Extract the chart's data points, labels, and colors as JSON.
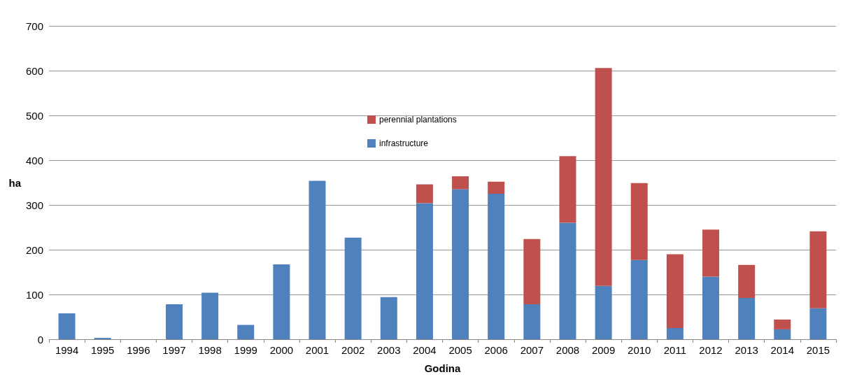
{
  "chart_data": {
    "type": "bar",
    "stacked": true,
    "xlabel": "Godina",
    "ylabel": "ha",
    "categories": [
      "1994",
      "1995",
      "1996",
      "1997",
      "1998",
      "1999",
      "2000",
      "2001",
      "2002",
      "2003",
      "2004",
      "2005",
      "2006",
      "2007",
      "2008",
      "2009",
      "2010",
      "2011",
      "2012",
      "2013",
      "2014",
      "2015"
    ],
    "series": [
      {
        "name": "infrastructure",
        "color": "#4f81bd",
        "values": [
          58,
          3,
          0,
          78,
          104,
          32,
          167,
          354,
          227,
          94,
          304,
          335,
          325,
          78,
          260,
          119,
          177,
          25,
          140,
          92,
          22,
          69
        ]
      },
      {
        "name": "perennial plantations",
        "color": "#c0504d",
        "values": [
          null,
          null,
          null,
          null,
          null,
          null,
          null,
          null,
          null,
          null,
          42,
          29,
          27,
          146,
          149,
          487,
          172,
          165,
          105,
          74,
          22,
          172
        ]
      }
    ],
    "ylim": [
      0,
      700
    ],
    "yticks": [
      0,
      100,
      200,
      300,
      400,
      500,
      600,
      700
    ],
    "grid": "y",
    "legend": "top"
  }
}
